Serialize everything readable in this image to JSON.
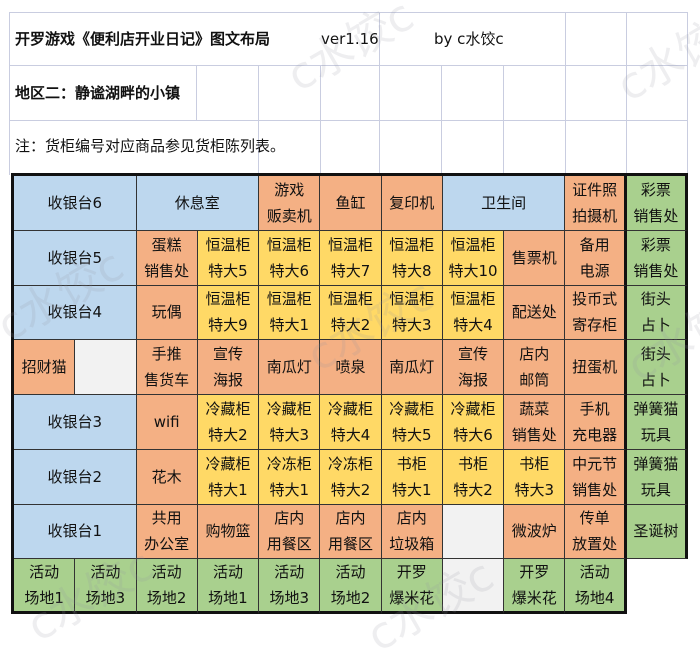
{
  "header": {
    "title": "开罗游戏《便利店开业日记》图文布局",
    "version": "ver1.16",
    "author": "by  c水饺c",
    "region": "地区二：静谧湖畔的小镇",
    "note": "注：货柜编号对应商品参见货柜陈列表。"
  },
  "watermark": "c水饺c",
  "colors": {
    "blue": "#bdd7ee",
    "orange": "#f4b084",
    "yellow": "#ffd966",
    "green": "#a9d08e",
    "empty": "#f2f2f2"
  },
  "layout_rows": [
    [
      {
        "t": [
          "收银台6"
        ],
        "c": "blue",
        "s": 2
      },
      {
        "t": [
          "休息室"
        ],
        "c": "blue",
        "s": 2
      },
      {
        "t": [
          "游戏",
          "贩卖机"
        ],
        "c": "orange"
      },
      {
        "t": [
          "鱼缸"
        ],
        "c": "orange"
      },
      {
        "t": [
          "复印机"
        ],
        "c": "orange"
      },
      {
        "t": [
          "卫生间"
        ],
        "c": "blue",
        "s": 2
      },
      {
        "t": [
          "证件照",
          "拍摄机"
        ],
        "c": "orange"
      },
      {
        "t": [
          "彩票",
          "销售处"
        ],
        "c": "green"
      }
    ],
    [
      {
        "t": [
          "收银台5"
        ],
        "c": "blue",
        "s": 2
      },
      {
        "t": [
          "蛋糕",
          "销售处"
        ],
        "c": "orange"
      },
      {
        "t": [
          "恒温柜",
          "特大5"
        ],
        "c": "yellow"
      },
      {
        "t": [
          "恒温柜",
          "特大6"
        ],
        "c": "yellow"
      },
      {
        "t": [
          "恒温柜",
          "特大7"
        ],
        "c": "yellow"
      },
      {
        "t": [
          "恒温柜",
          "特大8"
        ],
        "c": "yellow"
      },
      {
        "t": [
          "恒温柜",
          "特大10"
        ],
        "c": "yellow"
      },
      {
        "t": [
          "售票机"
        ],
        "c": "orange"
      },
      {
        "t": [
          "备用",
          "电源"
        ],
        "c": "orange"
      },
      {
        "t": [
          "彩票",
          "销售处"
        ],
        "c": "green"
      }
    ],
    [
      {
        "t": [
          "收银台4"
        ],
        "c": "blue",
        "s": 2
      },
      {
        "t": [
          "玩偶"
        ],
        "c": "orange"
      },
      {
        "t": [
          "恒温柜",
          "特大9"
        ],
        "c": "yellow"
      },
      {
        "t": [
          "恒温柜",
          "特大1"
        ],
        "c": "yellow"
      },
      {
        "t": [
          "恒温柜",
          "特大2"
        ],
        "c": "yellow"
      },
      {
        "t": [
          "恒温柜",
          "特大3"
        ],
        "c": "yellow"
      },
      {
        "t": [
          "恒温柜",
          "特大4"
        ],
        "c": "yellow"
      },
      {
        "t": [
          "配送处"
        ],
        "c": "orange"
      },
      {
        "t": [
          "投币式",
          "寄存柜"
        ],
        "c": "orange"
      },
      {
        "t": [
          "街头",
          "占卜"
        ],
        "c": "green"
      }
    ],
    [
      {
        "t": [
          "招财猫"
        ],
        "c": "orange"
      },
      {
        "t": [],
        "c": "empty"
      },
      {
        "t": [
          "手推",
          "售货车"
        ],
        "c": "orange"
      },
      {
        "t": [
          "宣传",
          "海报"
        ],
        "c": "orange"
      },
      {
        "t": [
          "南瓜灯"
        ],
        "c": "orange"
      },
      {
        "t": [
          "喷泉"
        ],
        "c": "orange"
      },
      {
        "t": [
          "南瓜灯"
        ],
        "c": "orange"
      },
      {
        "t": [
          "宣传",
          "海报"
        ],
        "c": "orange"
      },
      {
        "t": [
          "店内",
          "邮筒"
        ],
        "c": "orange"
      },
      {
        "t": [
          "扭蛋机"
        ],
        "c": "orange"
      },
      {
        "t": [
          "街头",
          "占卜"
        ],
        "c": "green"
      }
    ],
    [
      {
        "t": [
          "收银台3"
        ],
        "c": "blue",
        "s": 2
      },
      {
        "t": [
          "wifi"
        ],
        "c": "orange"
      },
      {
        "t": [
          "冷藏柜",
          "特大2"
        ],
        "c": "yellow"
      },
      {
        "t": [
          "冷藏柜",
          "特大3"
        ],
        "c": "yellow"
      },
      {
        "t": [
          "冷藏柜",
          "特大4"
        ],
        "c": "yellow"
      },
      {
        "t": [
          "冷藏柜",
          "特大5"
        ],
        "c": "yellow"
      },
      {
        "t": [
          "冷藏柜",
          "特大6"
        ],
        "c": "yellow"
      },
      {
        "t": [
          "蔬菜",
          "销售处"
        ],
        "c": "orange"
      },
      {
        "t": [
          "手机",
          "充电器"
        ],
        "c": "orange"
      },
      {
        "t": [
          "弹簧猫",
          "玩具"
        ],
        "c": "green"
      }
    ],
    [
      {
        "t": [
          "收银台2"
        ],
        "c": "blue",
        "s": 2
      },
      {
        "t": [
          "花木"
        ],
        "c": "orange"
      },
      {
        "t": [
          "冷藏柜",
          "特大1"
        ],
        "c": "yellow"
      },
      {
        "t": [
          "冷冻柜",
          "特大1"
        ],
        "c": "yellow"
      },
      {
        "t": [
          "冷冻柜",
          "特大2"
        ],
        "c": "yellow"
      },
      {
        "t": [
          "书柜",
          "特大1"
        ],
        "c": "yellow"
      },
      {
        "t": [
          "书柜",
          "特大2"
        ],
        "c": "yellow"
      },
      {
        "t": [
          "书柜",
          "特大3"
        ],
        "c": "yellow"
      },
      {
        "t": [
          "中元节",
          "销售处"
        ],
        "c": "orange"
      },
      {
        "t": [
          "弹簧猫",
          "玩具"
        ],
        "c": "green"
      }
    ],
    [
      {
        "t": [
          "收银台1"
        ],
        "c": "blue",
        "s": 2
      },
      {
        "t": [
          "共用",
          "办公室"
        ],
        "c": "orange"
      },
      {
        "t": [
          "购物篮"
        ],
        "c": "orange"
      },
      {
        "t": [
          "店内",
          "用餐区"
        ],
        "c": "orange"
      },
      {
        "t": [
          "店内",
          "用餐区"
        ],
        "c": "orange"
      },
      {
        "t": [
          "店内",
          "垃圾箱"
        ],
        "c": "orange"
      },
      {
        "t": [],
        "c": "empty"
      },
      {
        "t": [
          "微波炉"
        ],
        "c": "orange"
      },
      {
        "t": [
          "传单",
          "放置处"
        ],
        "c": "orange"
      },
      {
        "t": [
          "圣诞树"
        ],
        "c": "green"
      }
    ],
    [
      {
        "t": [
          "活动",
          "场地1"
        ],
        "c": "green"
      },
      {
        "t": [
          "活动",
          "场地3"
        ],
        "c": "green"
      },
      {
        "t": [
          "活动",
          "场地2"
        ],
        "c": "green"
      },
      {
        "t": [
          "活动",
          "场地1"
        ],
        "c": "green"
      },
      {
        "t": [
          "活动",
          "场地3"
        ],
        "c": "green"
      },
      {
        "t": [
          "活动",
          "场地2"
        ],
        "c": "green"
      },
      {
        "t": [
          "开罗",
          "爆米花"
        ],
        "c": "green"
      },
      {
        "t": [],
        "c": "empty"
      },
      {
        "t": [
          "开罗",
          "爆米花"
        ],
        "c": "green"
      },
      {
        "t": [
          "活动",
          "场地4"
        ],
        "c": "green"
      },
      {
        "t": [],
        "c": "none"
      }
    ]
  ]
}
